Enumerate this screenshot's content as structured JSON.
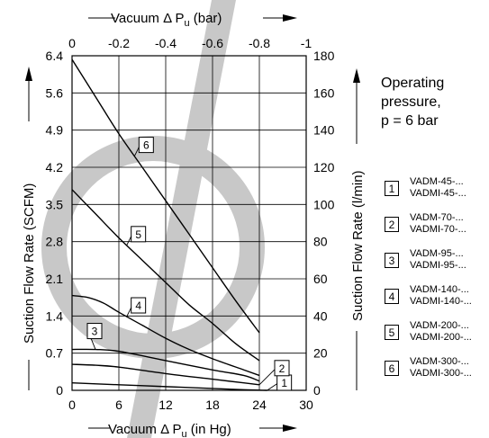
{
  "chart_data": {
    "type": "line",
    "title": "",
    "top_axis": {
      "label_prefix": "Vacuum Δ P",
      "label_sub": "u",
      "label_suffix": " (bar)",
      "ticks": [
        "0",
        "-0.2",
        "-0.4",
        "-0.6",
        "-0.8",
        "-1"
      ]
    },
    "bottom_axis": {
      "label_prefix": "Vacuum Δ P",
      "label_sub": "u",
      "label_suffix": " (in Hg)",
      "ticks": [
        "0",
        "6",
        "12",
        "18",
        "24",
        "30"
      ],
      "xlim": [
        0,
        30
      ]
    },
    "left_axis": {
      "label": "Suction Flow Rate (SCFM)",
      "ticks": [
        "0",
        "0.7",
        "1.4",
        "2.1",
        "2.8",
        "3.5",
        "4.2",
        "4.9",
        "5.6",
        "6.4"
      ]
    },
    "right_axis": {
      "label": "Suction Flow Rate (l/min)",
      "ticks": [
        "0",
        "20",
        "40",
        "60",
        "80",
        "100",
        "120",
        "140",
        "160",
        "180"
      ],
      "ylim": [
        0,
        180
      ]
    },
    "grid": true,
    "series": [
      {
        "name": "1",
        "x": [
          0,
          6,
          12,
          18,
          22,
          25
        ],
        "y": [
          4,
          3,
          2,
          1,
          0.3,
          0
        ]
      },
      {
        "name": "2",
        "x": [
          0,
          3,
          6,
          12,
          18,
          22,
          24
        ],
        "y": [
          14,
          13.5,
          12.5,
          9,
          6,
          4,
          3
        ]
      },
      {
        "name": "3",
        "x": [
          0,
          3,
          6,
          12,
          18,
          22,
          24
        ],
        "y": [
          22,
          22,
          21,
          16,
          11,
          8,
          5
        ]
      },
      {
        "name": "4",
        "x": [
          0,
          2,
          4,
          6,
          9,
          12,
          15,
          18,
          22,
          24
        ],
        "y": [
          51,
          50,
          47,
          42,
          35,
          28,
          22,
          17,
          11,
          8
        ]
      },
      {
        "name": "5",
        "x": [
          0,
          3,
          6,
          9,
          12,
          15,
          18,
          21,
          24
        ],
        "y": [
          108,
          95,
          82,
          70,
          58,
          46,
          36,
          25,
          16
        ]
      },
      {
        "name": "6",
        "x": [
          0,
          3,
          6,
          9,
          12,
          15,
          18,
          21,
          24
        ],
        "y": [
          178,
          158,
          138,
          120,
          102,
          84,
          66,
          48,
          31
        ]
      }
    ],
    "labels_at": {
      "1": 25,
      "2": 24,
      "3": 3,
      "4": 7,
      "5": 7,
      "6": 8
    }
  },
  "note": {
    "line1": "Operating",
    "line2": "pressure,",
    "line3": "p = 6 bar"
  },
  "legend": [
    {
      "num": "1",
      "line1": "VADM-45-...",
      "line2": "VADMI-45-..."
    },
    {
      "num": "2",
      "line1": "VADM-70-...",
      "line2": "VADMI-70-..."
    },
    {
      "num": "3",
      "line1": "VADM-95-...",
      "line2": "VADMI-95-..."
    },
    {
      "num": "4",
      "line1": "VADM-140-...",
      "line2": "VADMI-140-..."
    },
    {
      "num": "5",
      "line1": "VADM-200-...",
      "line2": "VADMI-200-..."
    },
    {
      "num": "6",
      "line1": "VADM-300-...",
      "line2": "VADMI-300-..."
    }
  ],
  "colors": {
    "line": "#000000",
    "watermark": "#c8c8c8",
    "grid": "#000000"
  }
}
